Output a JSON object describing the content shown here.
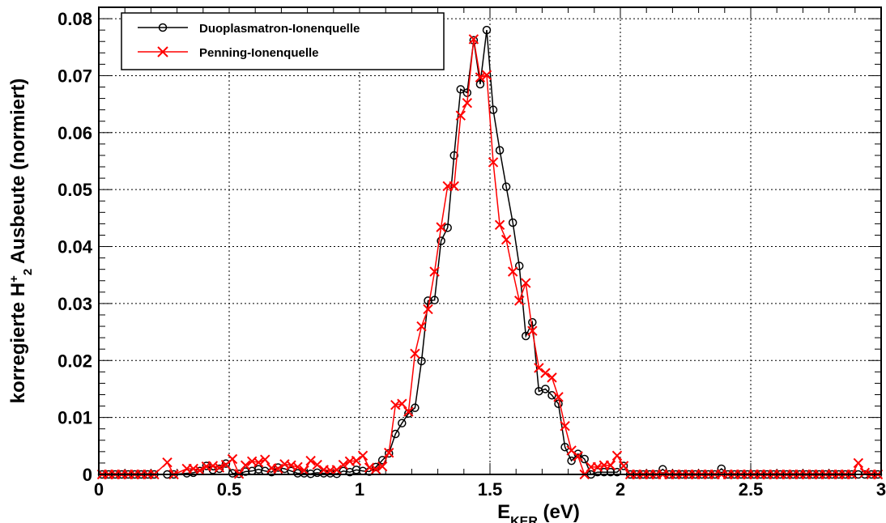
{
  "chart_data": {
    "type": "line",
    "xlabel": {
      "main": "E",
      "sub": "KER",
      "rest": " (eV)"
    },
    "ylabel": {
      "pre": "korregierte H",
      "sup": "+",
      "sub": "2",
      "post": " Ausbeute (normiert)"
    },
    "xlim": [
      0,
      3
    ],
    "ylim": [
      0,
      0.082
    ],
    "xticks": [
      0,
      0.5,
      1,
      1.5,
      2,
      2.5,
      3
    ],
    "xtick_labels": [
      "0",
      "0.5",
      "1",
      "1.5",
      "2",
      "2.5",
      "3"
    ],
    "yticks": [
      0,
      0.01,
      0.02,
      0.03,
      0.04,
      0.05,
      0.06,
      0.07,
      0.08
    ],
    "ytick_labels": [
      "0",
      "0.01",
      "0.02",
      "0.03",
      "0.04",
      "0.05",
      "0.06",
      "0.07",
      "0.08"
    ],
    "grid": true,
    "legend_position": "top-left",
    "x": [
      0.0125,
      0.0375,
      0.0625,
      0.0875,
      0.1125,
      0.1375,
      0.1625,
      0.1875,
      0.2125,
      0.2625,
      0.2875,
      0.3375,
      0.3625,
      0.3875,
      0.4125,
      0.4375,
      0.4625,
      0.4875,
      0.5125,
      0.5375,
      0.5625,
      0.5875,
      0.6125,
      0.6375,
      0.6625,
      0.6875,
      0.7125,
      0.7375,
      0.7625,
      0.7875,
      0.8125,
      0.8375,
      0.8625,
      0.8875,
      0.9125,
      0.9375,
      0.9625,
      0.9875,
      1.0125,
      1.0375,
      1.0625,
      1.0875,
      1.1125,
      1.1375,
      1.1625,
      1.1875,
      1.2125,
      1.2375,
      1.2625,
      1.2875,
      1.3125,
      1.3375,
      1.3625,
      1.3875,
      1.4125,
      1.4375,
      1.4625,
      1.4875,
      1.5125,
      1.5375,
      1.5625,
      1.5875,
      1.6125,
      1.6375,
      1.6625,
      1.6875,
      1.7125,
      1.7375,
      1.7625,
      1.7875,
      1.8125,
      1.8375,
      1.8625,
      1.8875,
      1.9125,
      1.9375,
      1.9625,
      1.9875,
      2.0125,
      2.0375,
      2.0625,
      2.0875,
      2.1125,
      2.1375,
      2.1625,
      2.1875,
      2.2125,
      2.2375,
      2.2625,
      2.2875,
      2.3125,
      2.3375,
      2.3625,
      2.3875,
      2.4125,
      2.4375,
      2.4625,
      2.4875,
      2.5125,
      2.5375,
      2.5625,
      2.5875,
      2.6125,
      2.6375,
      2.6625,
      2.6875,
      2.7125,
      2.7375,
      2.7625,
      2.7875,
      2.8125,
      2.8375,
      2.8625,
      2.8875,
      2.9125,
      2.9375,
      2.9625,
      2.9875
    ],
    "series": [
      {
        "name": "Duoplasmatron-Ionenquelle",
        "color": "#000000",
        "marker": "circle",
        "values": [
          0,
          0,
          0,
          0,
          0,
          0,
          0,
          0,
          0,
          0,
          0,
          0.0002,
          0.0003,
          0.0006,
          0.0015,
          0.0008,
          0.001,
          0.0019,
          0.0002,
          0.0001,
          0.0005,
          0.0006,
          0.0009,
          0.0006,
          0.0004,
          0.0012,
          0.001,
          0.0006,
          0.0002,
          0.0002,
          0.0001,
          0.0003,
          0.0002,
          0.0002,
          0.0001,
          0.0006,
          0.0004,
          0.0008,
          0.0006,
          0.0005,
          0.0013,
          0.0025,
          0.0037,
          0.0071,
          0.009,
          0.0107,
          0.0117,
          0.0199,
          0.0305,
          0.0306,
          0.041,
          0.0433,
          0.056,
          0.0676,
          0.067,
          0.0762,
          0.0685,
          0.078,
          0.064,
          0.0569,
          0.0505,
          0.0442,
          0.0366,
          0.0243,
          0.0267,
          0.0146,
          0.015,
          0.0139,
          0.0124,
          0.0048,
          0.0024,
          0.0036,
          0.0027,
          0.0,
          0.0004,
          0.0004,
          0.0004,
          0.0004,
          0.0015,
          0,
          0,
          0,
          0,
          0,
          0.0009,
          0,
          0,
          0,
          0,
          0,
          0,
          0,
          0,
          0.001,
          0,
          0,
          0,
          0,
          0,
          0,
          0,
          0,
          0,
          0,
          0,
          0,
          0,
          0,
          0,
          0,
          0,
          0,
          0,
          0,
          0,
          0,
          0,
          0
        ]
      },
      {
        "name": "Penning-Ionenquelle",
        "color": "#ff0000",
        "marker": "cross",
        "values": [
          0,
          0,
          0,
          0,
          0,
          0,
          0,
          0,
          0,
          0.0021,
          0,
          0.001,
          0.001,
          0.0007,
          0.0014,
          0.0015,
          0.0012,
          0.0017,
          0.0027,
          0.0001,
          0.0016,
          0.0023,
          0.0021,
          0.0026,
          0.0011,
          0.001,
          0.0018,
          0.0016,
          0.0013,
          0.0007,
          0.0024,
          0.0017,
          0.0008,
          0.0007,
          0.0008,
          0.0017,
          0.0023,
          0.0024,
          0.0033,
          0.0012,
          0.0009,
          0.0014,
          0.0038,
          0.0122,
          0.0124,
          0.011,
          0.0212,
          0.026,
          0.029,
          0.0356,
          0.0434,
          0.0506,
          0.0506,
          0.063,
          0.0652,
          0.0764,
          0.0697,
          0.0701,
          0.0548,
          0.0438,
          0.0412,
          0.0356,
          0.0305,
          0.0336,
          0.0252,
          0.0187,
          0.0178,
          0.017,
          0.0136,
          0.0085,
          0.0042,
          0.0032,
          0.0,
          0.0013,
          0.0013,
          0.0016,
          0.0016,
          0.0033,
          0.0015,
          0,
          0,
          0,
          0,
          0,
          0,
          0,
          0,
          0,
          0,
          0,
          0,
          0,
          0,
          0,
          0,
          0,
          0,
          0,
          0,
          0,
          0,
          0,
          0,
          0,
          0,
          0,
          0,
          0,
          0,
          0,
          0,
          0,
          0,
          0,
          0.002,
          0.0003,
          0,
          0
        ]
      }
    ]
  }
}
